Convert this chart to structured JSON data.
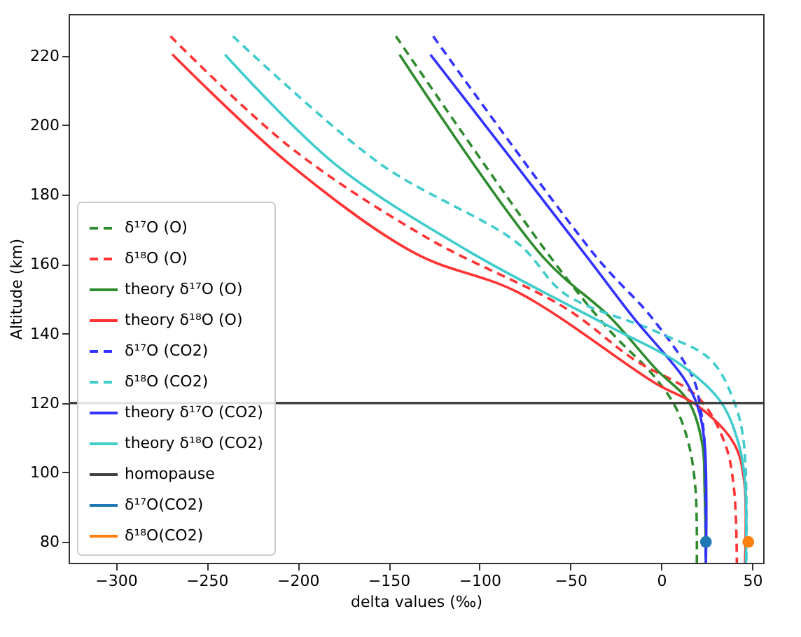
{
  "chart_data": {
    "type": "line",
    "xlabel": "delta values (‰)",
    "ylabel": "Altitude (km)",
    "xlim": [
      -326,
      56
    ],
    "ylim": [
      74,
      232
    ],
    "xticks": [
      -300,
      -250,
      -200,
      -150,
      -100,
      -50,
      0,
      50
    ],
    "yticks": [
      80,
      100,
      120,
      140,
      160,
      180,
      200,
      220
    ],
    "grid": false,
    "legend": "bottom left",
    "series": [
      {
        "name": "δ¹⁷O (O)",
        "line_style": "dashed",
        "color": "#2e8b2e",
        "x": [
          -146,
          -61,
          -28,
          -5.3,
          7.4,
          15,
          18.8,
          19.5
        ],
        "values": [
          225.6,
          162,
          140.6,
          128.5,
          119.2,
          108.3,
          95,
          74
        ]
      },
      {
        "name": "δ¹⁸O (O)",
        "line_style": "dashed",
        "color": "#ff3333",
        "x": [
          -270,
          -205,
          -129,
          -53,
          -15,
          20,
          35,
          40,
          41.5
        ],
        "values": [
          225.6,
          194,
          167.6,
          147.4,
          132.5,
          121.7,
          108.3,
          95,
          74
        ]
      },
      {
        "name": "theory δ¹⁷O (O)",
        "line_style": "solid",
        "color": "#2e8b2e",
        "x": [
          -144,
          -65,
          -28,
          -3,
          15,
          22.5,
          23.8,
          24.5
        ],
        "values": [
          220.3,
          162,
          144.6,
          129.8,
          120.4,
          108.3,
          95,
          74
        ]
      },
      {
        "name": "theory δ¹⁸O (O)",
        "line_style": "solid",
        "color": "#ff3333",
        "x": [
          -269,
          -205,
          -135,
          -79,
          -3,
          20,
          40,
          45.6,
          46
        ],
        "values": [
          220.4,
          189,
          163,
          151.9,
          125.6,
          119.2,
          108.3,
          97.4,
          74
        ]
      },
      {
        "name": "δ¹⁷O (CO2)",
        "line_style": "dashed",
        "color": "#3333ff",
        "x": [
          -125.5,
          -35.7,
          -5.3,
          17.5,
          21.3,
          23.8,
          24.3
        ],
        "values": [
          225.6,
          162,
          144.6,
          127.1,
          119,
          108.3,
          74
        ]
      },
      {
        "name": "δ¹⁸O (CO2)",
        "line_style": "dashed",
        "color": "#40cccc",
        "x": [
          -235.6,
          -155,
          -79,
          -53,
          -3,
          27,
          40,
          45.4,
          46.7
        ],
        "values": [
          225.6,
          189,
          166,
          151.4,
          140.6,
          132.5,
          120.4,
          108.3,
          74
        ]
      },
      {
        "name": "theory δ¹⁷O (CO2)",
        "line_style": "solid",
        "color": "#3333ff",
        "x": [
          -127,
          -40.8,
          -15.4,
          12.4,
          20,
          23.8,
          24.5
        ],
        "values": [
          220.3,
          162,
          144.6,
          127.1,
          119,
          108.3,
          74
        ]
      },
      {
        "name": "theory δ¹⁸O (CO2)",
        "line_style": "solid",
        "color": "#40cccc",
        "x": [
          -240,
          -180,
          -107,
          -28,
          10,
          32.6,
          42.5,
          46,
          46.5
        ],
        "values": [
          220.3,
          189,
          164,
          141.9,
          131.3,
          120.4,
          108.3,
          97.4,
          74
        ]
      },
      {
        "name": "δ¹⁷O(CO2)",
        "type": "scatter",
        "marker": "circle",
        "color": "#1f77b4",
        "x": [
          24.5
        ],
        "values": [
          80
        ]
      },
      {
        "name": "δ¹⁸O(CO2)",
        "type": "scatter",
        "marker": "circle",
        "color": "#ff7f0e",
        "x": [
          47.8
        ],
        "values": [
          80
        ]
      }
    ],
    "ref_lines": [
      {
        "axis": "y",
        "value": 120,
        "label": "homopause",
        "color": "#404040"
      }
    ]
  }
}
